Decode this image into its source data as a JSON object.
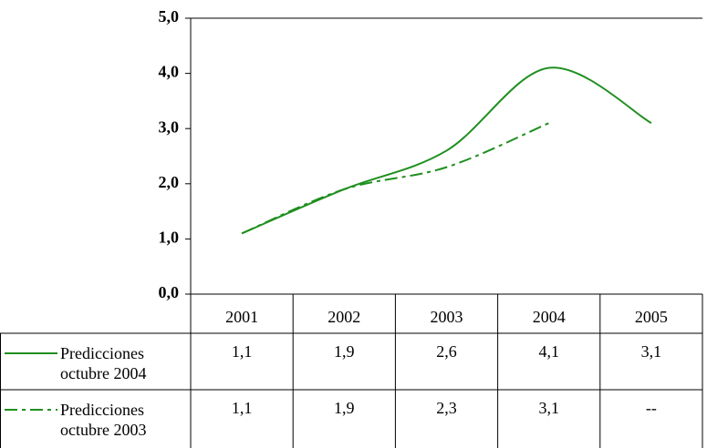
{
  "chart_data": {
    "type": "line",
    "categories": [
      "2001",
      "2002",
      "2003",
      "2004",
      "2005"
    ],
    "series": [
      {
        "name": "Predicciones octubre 2004",
        "color": "#1f8f1f",
        "dash": "solid",
        "values": [
          1.1,
          1.9,
          2.6,
          4.1,
          3.1
        ],
        "value_labels": [
          "1,1",
          "1,9",
          "2,6",
          "4,1",
          "3,1"
        ]
      },
      {
        "name": "Predicciones octubre 2003",
        "color": "#1f8f1f",
        "dash": "dash-dot",
        "values": [
          1.1,
          1.9,
          2.3,
          3.1,
          null
        ],
        "value_labels": [
          "1,1",
          "1,9",
          "2,3",
          "3,1",
          "--"
        ]
      }
    ],
    "ylim": [
      0,
      5
    ],
    "yticks": [
      {
        "value": 0,
        "label": "0,0"
      },
      {
        "value": 1,
        "label": "1,0"
      },
      {
        "value": 2,
        "label": "2,0"
      },
      {
        "value": 3,
        "label": "3,0"
      },
      {
        "value": 4,
        "label": "4,0"
      },
      {
        "value": 5,
        "label": "5,0"
      }
    ],
    "grid": false
  }
}
